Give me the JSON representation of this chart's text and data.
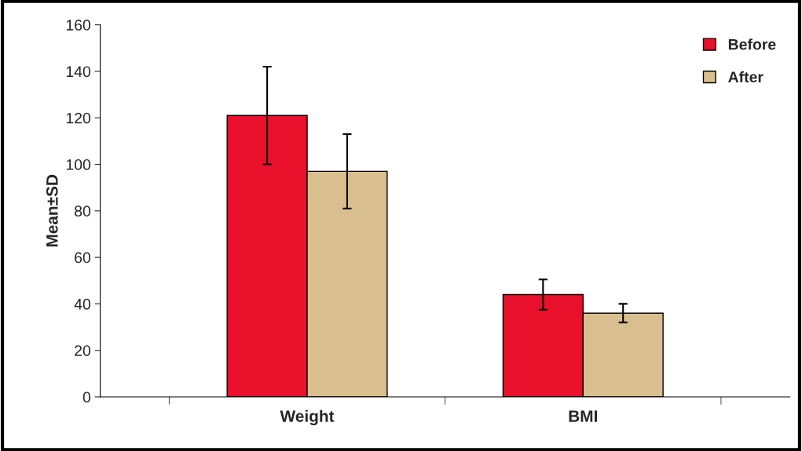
{
  "chart_data": {
    "type": "bar",
    "ylabel": "Mean±SD",
    "categories": [
      "Weight",
      "BMI"
    ],
    "series": [
      {
        "name": "Before",
        "color": "#e8102a",
        "values": [
          121,
          44
        ],
        "errors": [
          21,
          6.5
        ]
      },
      {
        "name": "After",
        "color": "#d9bf8f",
        "values": [
          97,
          36
        ],
        "errors": [
          16,
          4
        ]
      }
    ],
    "ylim": [
      0,
      160
    ],
    "yticks": [
      0,
      20,
      40,
      60,
      80,
      100,
      120,
      140,
      160
    ],
    "grid": false,
    "legend": "top right"
  }
}
